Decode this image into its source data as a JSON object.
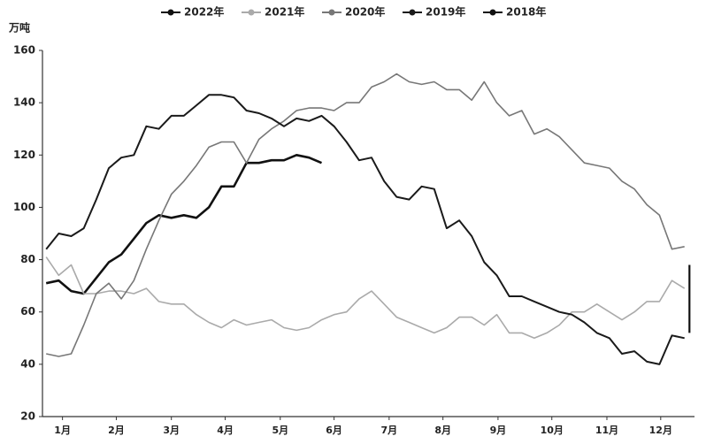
{
  "chart_data": {
    "type": "line",
    "y_label": "万吨",
    "x": [
      1,
      2,
      3,
      4,
      5,
      6,
      7,
      8,
      9,
      10,
      11,
      12,
      13,
      14,
      15,
      16,
      17,
      18,
      19,
      20,
      21,
      22,
      23,
      24,
      25,
      26,
      27,
      28,
      29,
      30,
      31,
      32,
      33,
      34,
      35,
      36,
      37,
      38,
      39,
      40,
      41,
      42,
      43,
      44,
      45,
      46,
      47,
      48,
      49,
      50,
      51,
      52
    ],
    "xlim": [
      0.7,
      52.8
    ],
    "xticks": [
      {
        "value": 2.3,
        "label": "1月"
      },
      {
        "value": 6.6,
        "label": "2月"
      },
      {
        "value": 11.0,
        "label": "3月"
      },
      {
        "value": 15.3,
        "label": "4月"
      },
      {
        "value": 19.7,
        "label": "5月"
      },
      {
        "value": 24.0,
        "label": "6月"
      },
      {
        "value": 28.4,
        "label": "7月"
      },
      {
        "value": 32.7,
        "label": "8月"
      },
      {
        "value": 37.1,
        "label": "9月"
      },
      {
        "value": 41.4,
        "label": "10月"
      },
      {
        "value": 45.8,
        "label": "11月"
      },
      {
        "value": 50.1,
        "label": "12月"
      }
    ],
    "ylim": [
      20,
      160
    ],
    "yticks": [
      20,
      40,
      60,
      80,
      100,
      120,
      140,
      160
    ],
    "series": [
      {
        "name": "2022年",
        "color": "#111111",
        "width": 2.6,
        "values": [
          71,
          72,
          68,
          67,
          73,
          79,
          82,
          88,
          94,
          97,
          96,
          97,
          96,
          100,
          108,
          108,
          117,
          117,
          118,
          118,
          120,
          119,
          117,
          null,
          null,
          null,
          null,
          null,
          null,
          null,
          null,
          null,
          null,
          null,
          null,
          null,
          null,
          null,
          null,
          null,
          null,
          null,
          null,
          null,
          null,
          null,
          null,
          null,
          null,
          null,
          null,
          null
        ]
      },
      {
        "name": "2021年",
        "color": "#aaaaaa",
        "width": 1.6,
        "values": [
          81,
          74,
          78,
          67,
          67,
          68,
          68,
          67,
          69,
          64,
          63,
          63,
          59,
          56,
          54,
          57,
          55,
          56,
          57,
          54,
          53,
          54,
          57,
          59,
          60,
          65,
          68,
          63,
          58,
          56,
          54,
          52,
          54,
          58,
          58,
          55,
          59,
          52,
          52,
          50,
          52,
          55,
          60,
          60,
          63,
          60,
          57,
          60,
          64,
          64,
          72,
          69
        ]
      },
      {
        "name": "2020年",
        "color": "#777777",
        "width": 1.6,
        "values": [
          44,
          43,
          44,
          55,
          67,
          71,
          65,
          72,
          84,
          95,
          105,
          110,
          116,
          123,
          125,
          125,
          117,
          126,
          130,
          133,
          137,
          138,
          138,
          137,
          140,
          140,
          146,
          148,
          151,
          148,
          147,
          148,
          145,
          145,
          141,
          148,
          140,
          135,
          137,
          128,
          130,
          127,
          122,
          117,
          116,
          115,
          110,
          107,
          101,
          97,
          84,
          85
        ]
      },
      {
        "name": "2019年",
        "color": "#1a1a1a",
        "width": 2,
        "values": [
          84,
          90,
          89,
          92,
          103,
          115,
          119,
          120,
          131,
          130,
          135,
          135,
          139,
          143,
          143,
          142,
          137,
          136,
          134,
          131,
          134,
          133,
          135,
          131,
          125,
          118,
          119,
          110,
          104,
          103,
          108,
          107,
          92,
          95,
          89,
          79,
          74,
          66,
          66,
          64,
          62,
          60,
          59,
          56,
          52,
          50,
          44,
          45,
          41,
          40,
          51,
          50
        ]
      },
      {
        "name": "2018年",
        "color": "#111111",
        "width": 2.2,
        "x": [
          52.4,
          52.4
        ],
        "values": [
          52,
          78
        ]
      }
    ]
  }
}
